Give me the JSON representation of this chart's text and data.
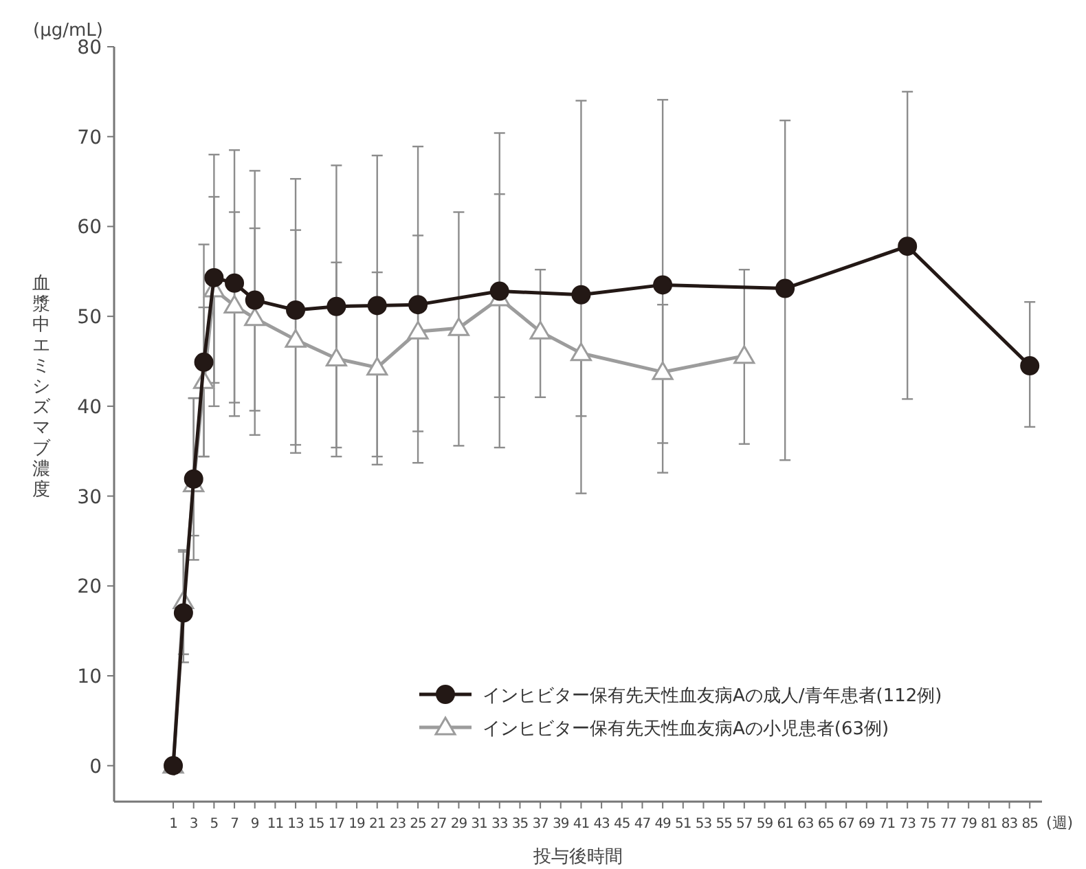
{
  "chart_data": {
    "type": "line",
    "xlabel": "投与後時間",
    "ylabel": "血漿中エミシズマブ濃度",
    "annotations": [
      "(μg/mL)",
      "(週)"
    ],
    "xlim": [
      -4.8,
      86.2
    ],
    "ylim": [
      -4,
      80
    ],
    "xticks": [
      1,
      3,
      5,
      7,
      9,
      11,
      13,
      15,
      17,
      19,
      21,
      23,
      25,
      27,
      29,
      31,
      33,
      35,
      37,
      39,
      41,
      43,
      45,
      47,
      49,
      51,
      53,
      55,
      57,
      59,
      61,
      63,
      65,
      67,
      69,
      71,
      73,
      75,
      77,
      79,
      81,
      83,
      85
    ],
    "yticks": [
      0,
      10,
      20,
      30,
      40,
      50,
      60,
      70,
      80
    ],
    "legend": "bottom right",
    "series": [
      {
        "name": "インヒビター保有先天性血友病Aの成人/青年患者(112例)",
        "color": "#231815",
        "marker": "circle",
        "x": [
          1,
          2,
          3,
          4,
          5,
          7,
          9,
          13,
          17,
          21,
          25,
          33,
          41,
          49,
          61,
          73,
          85
        ],
        "values": [
          0,
          17.0,
          31.9,
          44.9,
          54.3,
          53.7,
          51.8,
          50.7,
          51.1,
          51.2,
          51.3,
          52.8,
          52.4,
          53.5,
          53.1,
          57.8,
          44.5
        ],
        "errors": [
          null,
          [
            12.4,
            23.8
          ],
          [
            22.9,
            40.9
          ],
          [
            34.4,
            58.0
          ],
          [
            40.0,
            68.0
          ],
          [
            38.9,
            68.5
          ],
          [
            36.8,
            66.2
          ],
          [
            35.7,
            65.3
          ],
          [
            35.4,
            66.8
          ],
          [
            34.4,
            67.9
          ],
          [
            33.7,
            68.9
          ],
          [
            35.4,
            70.4
          ],
          [
            30.3,
            74.0
          ],
          [
            32.6,
            74.1
          ],
          [
            34.0,
            71.8
          ],
          [
            40.8,
            75.0
          ],
          [
            37.7,
            51.6
          ]
        ]
      },
      {
        "name": "インヒビター保有先天性血友病Aの小児患者(63例)",
        "color": "#9c9c9c",
        "marker": "triangle",
        "x": [
          1,
          2,
          3,
          4,
          5,
          7,
          9,
          13,
          17,
          21,
          25,
          29,
          33,
          37,
          41,
          49,
          57
        ],
        "values": [
          0,
          18.3,
          31.3,
          42.8,
          53.0,
          51.2,
          49.8,
          47.4,
          45.3,
          44.3,
          48.3,
          48.7,
          52.0,
          48.3,
          45.9,
          43.8,
          45.6
        ],
        "errors": [
          null,
          [
            11.5,
            24.0
          ],
          [
            25.6,
            40.9
          ],
          [
            34.4,
            51.0
          ],
          [
            42.6,
            63.3
          ],
          [
            40.4,
            61.6
          ],
          [
            39.5,
            59.8
          ],
          [
            34.8,
            59.6
          ],
          [
            34.4,
            56.0
          ],
          [
            33.5,
            54.9
          ],
          [
            37.2,
            59.0
          ],
          [
            35.6,
            61.6
          ],
          [
            41.0,
            63.6
          ],
          [
            41.0,
            55.2
          ],
          [
            38.9,
            45.9
          ],
          [
            35.9,
            51.3
          ],
          [
            35.8,
            55.2
          ]
        ]
      }
    ]
  }
}
